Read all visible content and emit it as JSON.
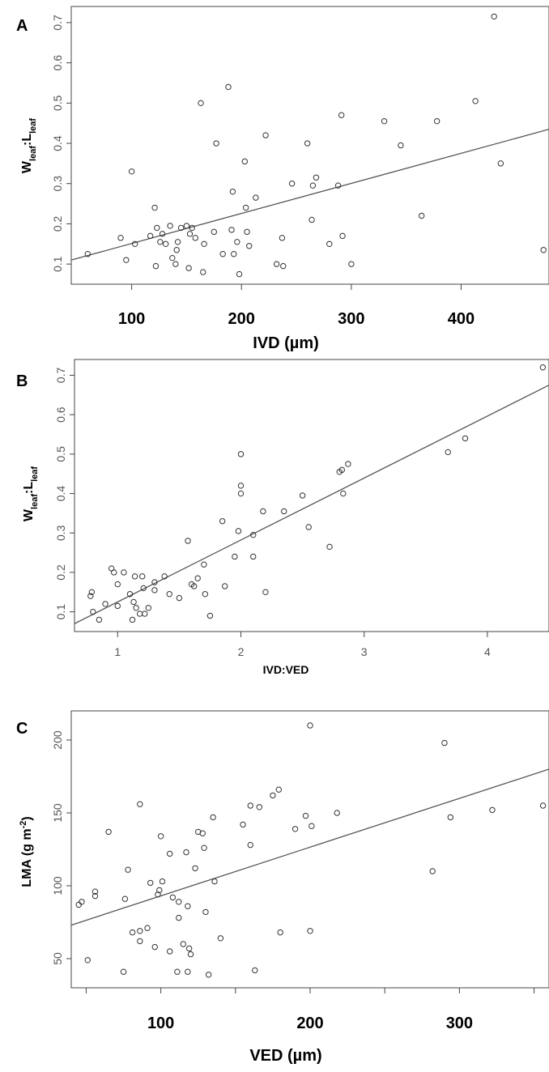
{
  "chart_data": [
    {
      "panel_label": "A",
      "type": "scatter",
      "title": "",
      "xlabel": "IVD (µm)",
      "ylabel": "Wleaf:Lleaf",
      "ylabel_parts": [
        {
          "t": "W",
          "sub": false
        },
        {
          "t": "leaf",
          "sub": true
        },
        {
          "t": ":L",
          "sub": false
        },
        {
          "t": "leaf",
          "sub": true
        }
      ],
      "xlim": [
        45,
        480
      ],
      "ylim": [
        0.05,
        0.74
      ],
      "x_ticks": [
        100,
        200,
        300,
        400
      ],
      "y_ticks": [
        0.1,
        0.2,
        0.3,
        0.4,
        0.5,
        0.6,
        0.7
      ],
      "fit_line": {
        "x": [
          45,
          480
        ],
        "y": [
          0.11,
          0.435
        ]
      },
      "grid": false,
      "legend": "none",
      "points": [
        [
          60,
          0.125
        ],
        [
          90,
          0.165
        ],
        [
          95,
          0.11
        ],
        [
          100,
          0.33
        ],
        [
          103,
          0.15
        ],
        [
          117,
          0.17
        ],
        [
          121,
          0.24
        ],
        [
          122,
          0.095
        ],
        [
          123,
          0.19
        ],
        [
          126,
          0.155
        ],
        [
          128,
          0.175
        ],
        [
          131,
          0.15
        ],
        [
          135,
          0.195
        ],
        [
          137,
          0.115
        ],
        [
          140,
          0.1
        ],
        [
          141,
          0.135
        ],
        [
          142,
          0.155
        ],
        [
          145,
          0.19
        ],
        [
          150,
          0.195
        ],
        [
          152,
          0.09
        ],
        [
          153,
          0.175
        ],
        [
          155,
          0.19
        ],
        [
          158,
          0.165
        ],
        [
          163,
          0.5
        ],
        [
          165,
          0.08
        ],
        [
          166,
          0.15
        ],
        [
          175,
          0.18
        ],
        [
          177,
          0.4
        ],
        [
          183,
          0.125
        ],
        [
          188,
          0.54
        ],
        [
          191,
          0.185
        ],
        [
          192,
          0.28
        ],
        [
          193,
          0.125
        ],
        [
          196,
          0.155
        ],
        [
          198,
          0.075
        ],
        [
          203,
          0.355
        ],
        [
          204,
          0.24
        ],
        [
          205,
          0.18
        ],
        [
          207,
          0.145
        ],
        [
          213,
          0.265
        ],
        [
          222,
          0.42
        ],
        [
          232,
          0.1
        ],
        [
          237,
          0.165
        ],
        [
          238,
          0.095
        ],
        [
          246,
          0.3
        ],
        [
          260,
          0.4
        ],
        [
          264,
          0.21
        ],
        [
          265,
          0.295
        ],
        [
          268,
          0.315
        ],
        [
          280,
          0.15
        ],
        [
          288,
          0.295
        ],
        [
          291,
          0.47
        ],
        [
          292,
          0.17
        ],
        [
          300,
          0.1
        ],
        [
          330,
          0.455
        ],
        [
          345,
          0.395
        ],
        [
          364,
          0.22
        ],
        [
          378,
          0.455
        ],
        [
          413,
          0.505
        ],
        [
          430,
          0.715
        ],
        [
          436,
          0.35
        ],
        [
          475,
          0.135
        ]
      ]
    },
    {
      "panel_label": "B",
      "type": "scatter",
      "title": "",
      "xlabel": "IVD:VED",
      "ylabel": "Wleaf:Lleaf",
      "ylabel_parts": [
        {
          "t": "W",
          "sub": false
        },
        {
          "t": "leaf",
          "sub": true
        },
        {
          "t": ":L",
          "sub": false
        },
        {
          "t": "leaf",
          "sub": true
        }
      ],
      "xlim": [
        0.65,
        4.5
      ],
      "ylim": [
        0.05,
        0.74
      ],
      "x_ticks": [
        1,
        2,
        3,
        4
      ],
      "y_ticks": [
        0.1,
        0.2,
        0.3,
        0.4,
        0.5,
        0.6,
        0.7
      ],
      "fit_line": {
        "x": [
          0.65,
          4.5
        ],
        "y": [
          0.07,
          0.675
        ]
      },
      "grid": false,
      "legend": "none",
      "points": [
        [
          0.78,
          0.14
        ],
        [
          0.79,
          0.15
        ],
        [
          0.8,
          0.1
        ],
        [
          0.85,
          0.08
        ],
        [
          0.9,
          0.12
        ],
        [
          0.95,
          0.21
        ],
        [
          0.97,
          0.2
        ],
        [
          1.0,
          0.115
        ],
        [
          1.0,
          0.17
        ],
        [
          1.05,
          0.2
        ],
        [
          1.1,
          0.145
        ],
        [
          1.12,
          0.08
        ],
        [
          1.13,
          0.125
        ],
        [
          1.14,
          0.19
        ],
        [
          1.15,
          0.11
        ],
        [
          1.18,
          0.095
        ],
        [
          1.2,
          0.19
        ],
        [
          1.21,
          0.16
        ],
        [
          1.22,
          0.095
        ],
        [
          1.25,
          0.11
        ],
        [
          1.3,
          0.155
        ],
        [
          1.3,
          0.175
        ],
        [
          1.38,
          0.19
        ],
        [
          1.42,
          0.145
        ],
        [
          1.5,
          0.135
        ],
        [
          1.57,
          0.28
        ],
        [
          1.6,
          0.17
        ],
        [
          1.62,
          0.165
        ],
        [
          1.65,
          0.185
        ],
        [
          1.7,
          0.22
        ],
        [
          1.71,
          0.145
        ],
        [
          1.75,
          0.09
        ],
        [
          1.85,
          0.33
        ],
        [
          1.87,
          0.165
        ],
        [
          1.95,
          0.24
        ],
        [
          1.98,
          0.305
        ],
        [
          2.0,
          0.5
        ],
        [
          2.0,
          0.42
        ],
        [
          2.0,
          0.4
        ],
        [
          2.1,
          0.295
        ],
        [
          2.1,
          0.24
        ],
        [
          2.18,
          0.355
        ],
        [
          2.2,
          0.15
        ],
        [
          2.35,
          0.355
        ],
        [
          2.5,
          0.395
        ],
        [
          2.55,
          0.315
        ],
        [
          2.72,
          0.265
        ],
        [
          2.8,
          0.455
        ],
        [
          2.82,
          0.46
        ],
        [
          2.83,
          0.4
        ],
        [
          2.87,
          0.475
        ],
        [
          3.68,
          0.505
        ],
        [
          3.82,
          0.54
        ],
        [
          4.45,
          0.72
        ]
      ]
    },
    {
      "panel_label": "C",
      "type": "scatter",
      "title": "",
      "xlabel": "VED (µm)",
      "ylabel": "LMA (g m-2)",
      "ylabel_parts": [
        {
          "t": "LMA (g m",
          "sub": false
        },
        {
          "t": "-2",
          "sup": true
        },
        {
          "t": ")",
          "sub": false
        }
      ],
      "xlim": [
        40,
        360
      ],
      "ylim": [
        30,
        220
      ],
      "x_ticks": [
        50,
        100,
        150,
        200,
        250,
        300,
        350
      ],
      "x_tick_labels": [
        {
          "at": 100,
          "text": "100"
        },
        {
          "at": 200,
          "text": "200"
        },
        {
          "at": 300,
          "text": "300"
        }
      ],
      "y_ticks": [
        50,
        100,
        150,
        200
      ],
      "fit_line": {
        "x": [
          40,
          360
        ],
        "y": [
          73,
          180
        ]
      },
      "grid": false,
      "legend": "none",
      "points": [
        [
          45,
          87
        ],
        [
          47,
          89
        ],
        [
          51,
          49
        ],
        [
          56,
          93
        ],
        [
          56,
          96
        ],
        [
          65,
          137
        ],
        [
          75,
          41
        ],
        [
          76,
          91
        ],
        [
          78,
          111
        ],
        [
          81,
          68
        ],
        [
          86,
          156
        ],
        [
          86,
          62
        ],
        [
          86,
          69
        ],
        [
          91,
          71
        ],
        [
          93,
          102
        ],
        [
          96,
          58
        ],
        [
          98,
          94
        ],
        [
          99,
          97
        ],
        [
          100,
          134
        ],
        [
          101,
          103
        ],
        [
          106,
          55
        ],
        [
          106,
          122
        ],
        [
          108,
          92
        ],
        [
          111,
          41
        ],
        [
          112,
          89
        ],
        [
          112,
          78
        ],
        [
          115,
          60
        ],
        [
          117,
          123
        ],
        [
          118,
          41
        ],
        [
          118,
          86
        ],
        [
          119,
          57
        ],
        [
          120,
          53
        ],
        [
          123,
          112
        ],
        [
          125,
          137
        ],
        [
          128,
          136
        ],
        [
          129,
          126
        ],
        [
          130,
          82
        ],
        [
          132,
          39
        ],
        [
          135,
          147
        ],
        [
          136,
          103
        ],
        [
          140,
          64
        ],
        [
          155,
          142
        ],
        [
          160,
          128
        ],
        [
          160,
          155
        ],
        [
          163,
          42
        ],
        [
          166,
          154
        ],
        [
          175,
          162
        ],
        [
          179,
          166
        ],
        [
          180,
          68
        ],
        [
          190,
          139
        ],
        [
          197,
          148
        ],
        [
          200,
          210
        ],
        [
          200,
          69
        ],
        [
          201,
          141
        ],
        [
          218,
          150
        ],
        [
          282,
          110
        ],
        [
          290,
          198
        ],
        [
          294,
          147
        ],
        [
          322,
          152
        ],
        [
          356,
          155
        ]
      ]
    }
  ]
}
